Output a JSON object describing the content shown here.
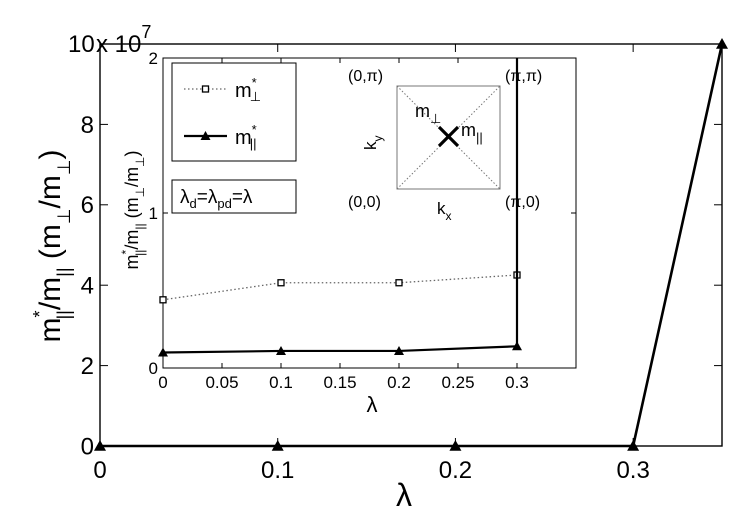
{
  "chart_data": [
    {
      "type": "line",
      "role": "main",
      "xlabel": "λ",
      "ylabel_parts": {
        "m": "m",
        "star": "*",
        "par": "||",
        "slash": "/m",
        "perp": "⊥",
        "lp": " (m",
        "rp": ")"
      },
      "exponent_label": {
        "base": "x 10",
        "exp": "7"
      },
      "xlim": [
        0,
        0.35
      ],
      "ylim": [
        0,
        10
      ],
      "xticks": [
        {
          "v": 0,
          "label": "0"
        },
        {
          "v": 0.1,
          "label": "0.1"
        },
        {
          "v": 0.2,
          "label": "0.2"
        },
        {
          "v": 0.3,
          "label": "0.3"
        }
      ],
      "yticks": [
        {
          "v": 0,
          "label": "0"
        },
        {
          "v": 2,
          "label": "2"
        },
        {
          "v": 4,
          "label": "4"
        },
        {
          "v": 6,
          "label": "6"
        },
        {
          "v": 8,
          "label": "8"
        },
        {
          "v": 10,
          "label": "10"
        }
      ],
      "series": [
        {
          "style": "solid",
          "marker": "triangle",
          "x": [
            0,
            0.1,
            0.2,
            0.3,
            0.35
          ],
          "y": [
            0,
            0,
            0,
            0,
            10
          ]
        }
      ]
    },
    {
      "type": "line",
      "role": "inset",
      "xlabel": "λ",
      "ylabel_parts": {
        "m": "m",
        "star": "*",
        "par": "||",
        "slash": "/m",
        "perp": "⊥",
        "lp": " (m",
        "rp": ")"
      },
      "xlim": [
        0,
        0.35
      ],
      "ylim": [
        0,
        2
      ],
      "xticks": [
        {
          "v": 0,
          "label": "0"
        },
        {
          "v": 0.05,
          "label": "0.05"
        },
        {
          "v": 0.1,
          "label": "0.1"
        },
        {
          "v": 0.15,
          "label": "0.15"
        },
        {
          "v": 0.2,
          "label": "0.2"
        },
        {
          "v": 0.25,
          "label": "0.25"
        },
        {
          "v": 0.3,
          "label": "0.3"
        }
      ],
      "yticks": [
        {
          "v": 0,
          "label": "0"
        },
        {
          "v": 1,
          "label": "1"
        },
        {
          "v": 2,
          "label": "2"
        }
      ],
      "series": [
        {
          "name": "m⊥*",
          "style": "dotted",
          "marker": "square",
          "x": [
            0,
            0.1,
            0.2,
            0.3
          ],
          "y": [
            0.44,
            0.55,
            0.55,
            0.6
          ]
        },
        {
          "name": "m||*",
          "style": "solid",
          "marker": "triangle",
          "x": [
            0,
            0.1,
            0.2,
            0.3
          ],
          "y": [
            0.1,
            0.11,
            0.11,
            0.14
          ]
        },
        {
          "name": "divergence",
          "style": "solid",
          "marker": "none",
          "x": [
            0.3,
            0.3
          ],
          "y": [
            0.14,
            2
          ]
        }
      ],
      "legend": {
        "placement": "top-left",
        "entries": [
          {
            "m": "m",
            "sup": "*",
            "sub": "⊥"
          },
          {
            "m": "m",
            "sup": "*",
            "sub": "||"
          }
        ]
      },
      "param_box": {
        "placement": "left",
        "parts": [
          {
            "t": "λ",
            "sub": "d"
          },
          {
            "t": "=λ",
            "sub": "pd"
          },
          {
            "t": "=λ",
            "sub": ""
          }
        ]
      },
      "bz_diagram": {
        "corners": {
          "top_left": "(0,π)",
          "top_right": "(π,π)",
          "bottom_left": "(0,0)",
          "bottom_right": "(π,0)"
        },
        "kx": {
          "t": "k",
          "sub": "x"
        },
        "ky": {
          "t": "k",
          "sub": "y"
        },
        "perp_label": {
          "t": "m",
          "sub": "⊥"
        },
        "par_label": {
          "t": "m",
          "sub": "||"
        }
      }
    }
  ]
}
